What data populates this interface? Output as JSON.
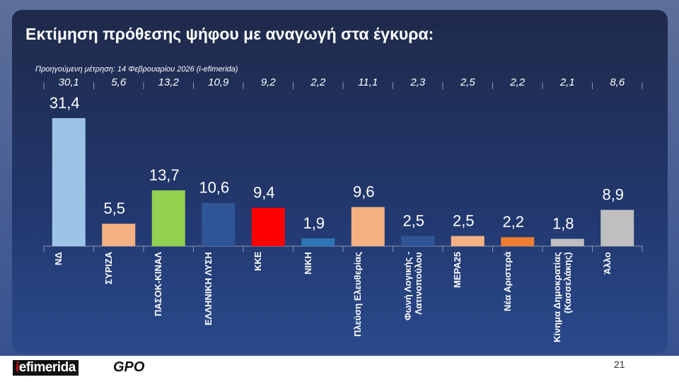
{
  "header": {
    "title": "Εκτίμηση πρόθεσης ψήφου με αναγωγή στα έγκυρα:",
    "page_number": "21",
    "brand": "efimerida",
    "partner": "GPO"
  },
  "chart_data": {
    "type": "bar",
    "subtitle": "Προηγούμενη μέτρηση: 14 Φεβρουαρίου 2026 (i-efimerida)",
    "categories": [
      "ΝΔ",
      "ΣΥΡΙΖΑ",
      "ΠΑΣΟΚ-ΚΙΝΑΛ",
      "ΕΛΛΗΝΙΚΗ ΛΥΣΗ",
      "ΚΚΕ",
      "ΝΙΚΗ",
      "Πλεύση Ελευθερίας",
      "Φωνή Λογικής - Λατινοπούλου",
      "ΜΕΡΑ25",
      "Νέα Αριστερά",
      "Κίνημα Δημοκρατίας (Κασσελάκης)",
      "Άλλο"
    ],
    "values": [
      31.4,
      5.5,
      13.7,
      10.6,
      9.4,
      1.9,
      9.6,
      2.5,
      2.5,
      2.2,
      1.8,
      8.9
    ],
    "value_labels": [
      "31,4",
      "5,5",
      "13,7",
      "10,6",
      "9,4",
      "1,9",
      "9,6",
      "2,5",
      "2,5",
      "2,2",
      "1,8",
      "8,9"
    ],
    "previous_values": [
      30.1,
      5.6,
      13.2,
      10.9,
      9.2,
      2.2,
      11.1,
      2.3,
      2.5,
      2.2,
      2.1,
      8.6
    ],
    "previous_labels": [
      "30,1",
      "5,6",
      "13,2",
      "10,9",
      "9,2",
      "2,2",
      "11,1",
      "2,3",
      "2,5",
      "2,2",
      "2,1",
      "8,6"
    ],
    "colors": [
      "#9dc3e6",
      "#f4b183",
      "#92d050",
      "#2f5597",
      "#ff0000",
      "#2e75b6",
      "#f4b183",
      "#2f5597",
      "#f4b183",
      "#ed7d31",
      "#bfbfbf",
      "#bfbfbf"
    ]
  }
}
